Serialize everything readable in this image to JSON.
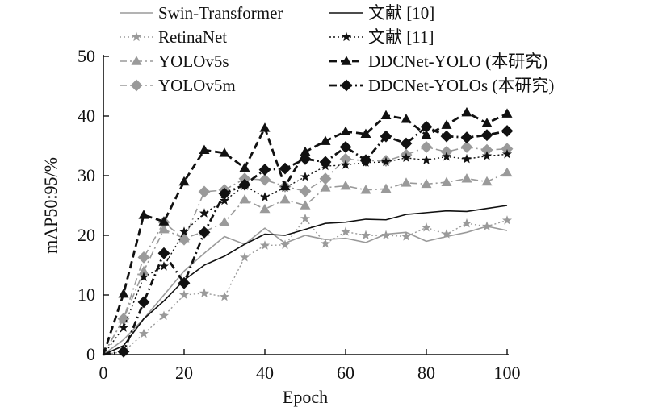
{
  "chart_data": {
    "type": "line",
    "xlabel": "Epoch",
    "ylabel": "mAP50:95/%",
    "xlim": [
      0,
      100
    ],
    "ylim": [
      0,
      50
    ],
    "xticks": [
      0,
      20,
      40,
      60,
      80,
      100
    ],
    "yticks": [
      0,
      10,
      20,
      30,
      40,
      50
    ],
    "x": [
      0,
      5,
      10,
      15,
      20,
      25,
      30,
      35,
      40,
      45,
      50,
      55,
      60,
      65,
      70,
      75,
      80,
      85,
      90,
      95,
      100
    ],
    "legend_placement": "top",
    "grid": false,
    "series": [
      {
        "name": "Swin-Transformer",
        "color": "#9a9a9a",
        "dash": "solid",
        "width": 1.6,
        "marker": "none",
        "values": [
          0,
          2.5,
          6,
          10,
          14,
          17,
          19.8,
          18.5,
          21.2,
          18.7,
          20,
          19.3,
          19.5,
          18.8,
          20.2,
          20.5,
          19,
          19.8,
          20.5,
          21.5,
          20.8
        ]
      },
      {
        "name": "RetinaNet",
        "color": "#9a9a9a",
        "dash": "2,3",
        "width": 1.4,
        "marker": "star",
        "values": [
          0,
          0.5,
          3.5,
          6.5,
          10,
          10.3,
          9.7,
          16.3,
          18.3,
          18.4,
          22.8,
          18.6,
          20.6,
          20,
          20,
          19.8,
          21.3,
          20.2,
          22,
          21.5,
          22.5
        ]
      },
      {
        "name": "YOLOv5s",
        "color": "#9a9a9a",
        "dash": "9,4,2,4",
        "width": 1.6,
        "marker": "triangle",
        "values": [
          0,
          6,
          14,
          21,
          19.5,
          20.6,
          22.2,
          26,
          24.4,
          26,
          25,
          28,
          28.3,
          27.6,
          27.8,
          28.8,
          28.6,
          28.9,
          29.5,
          29,
          30.5
        ]
      },
      {
        "name": "YOLOv5m",
        "color": "#9a9a9a",
        "dash": "9,4,2,4",
        "width": 1.6,
        "marker": "diamond",
        "values": [
          0,
          6,
          16.3,
          22.2,
          19.3,
          27.3,
          27.6,
          29.5,
          29.3,
          28.2,
          27.4,
          29.5,
          32.8,
          32.5,
          32.5,
          33.5,
          34.8,
          34,
          34.8,
          34.3,
          34.5
        ]
      },
      {
        "name": "文献 [10]",
        "color": "#111111",
        "dash": "solid",
        "width": 1.6,
        "marker": "none",
        "values": [
          0,
          1.5,
          6,
          9,
          12.5,
          15,
          16.5,
          18.5,
          20.2,
          20,
          21,
          22,
          22.2,
          22.7,
          22.6,
          23.5,
          23.8,
          24.1,
          24,
          24.5,
          25
        ]
      },
      {
        "name": "文献 [11]",
        "color": "#111111",
        "dash": "2,3",
        "width": 1.4,
        "marker": "star",
        "values": [
          0,
          4.5,
          13,
          14.8,
          20.6,
          23.7,
          25.8,
          28.3,
          26.4,
          28,
          29.8,
          31.6,
          31.8,
          32.2,
          32.3,
          33,
          32.6,
          33.2,
          32.8,
          33.3,
          33.6
        ]
      },
      {
        "name": "DDCNet-YOLO (本研究)",
        "color": "#111111",
        "dash": "9,5",
        "width": 2.8,
        "marker": "triangle",
        "values": [
          0,
          10.2,
          23.4,
          22.3,
          29,
          34.3,
          33.8,
          31.3,
          38,
          28.2,
          34,
          35.8,
          37.4,
          37,
          40.1,
          39.5,
          36.8,
          38.5,
          40.6,
          38.8,
          40.4
        ]
      },
      {
        "name": "DDCNet-YOLOs (本研究)",
        "color": "#111111",
        "dash": "9,4,2,4",
        "width": 2.8,
        "marker": "diamond",
        "values": [
          0,
          0.5,
          8.8,
          17,
          12,
          20.5,
          27,
          28.5,
          31,
          31.2,
          32.8,
          32.3,
          34.8,
          32.6,
          36.6,
          35.4,
          38.2,
          36.6,
          36.4,
          36.8,
          37.5
        ]
      }
    ]
  }
}
